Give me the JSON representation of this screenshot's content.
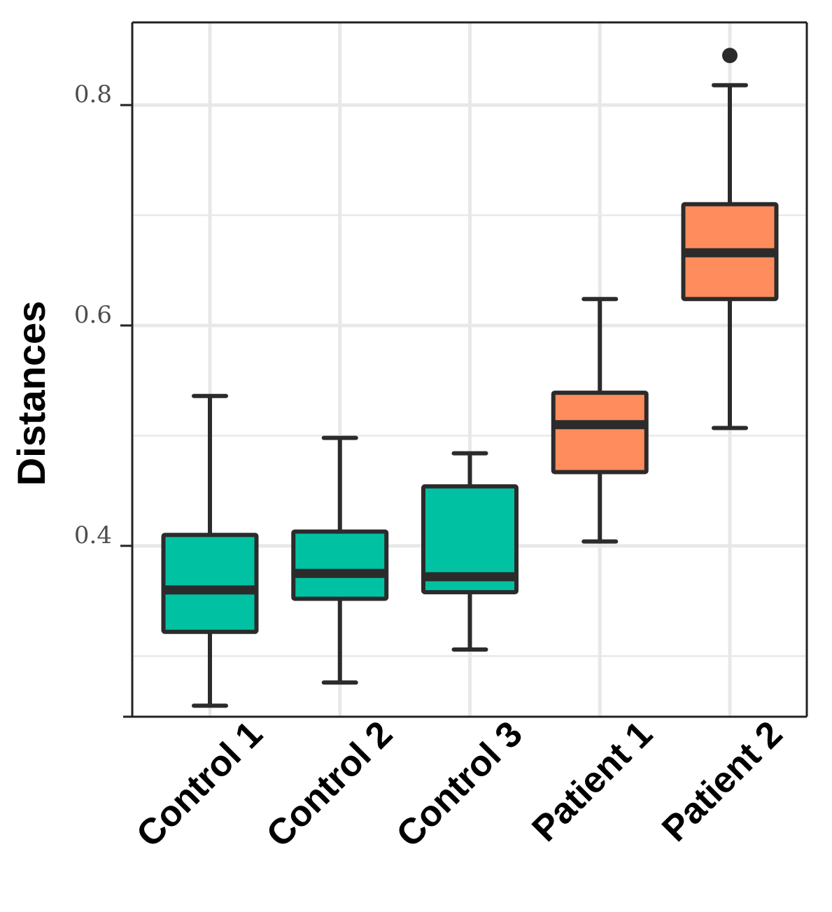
{
  "chart_data": {
    "type": "box",
    "title": "",
    "xlabel": "",
    "ylabel": "Distances",
    "ylim": [
      0.245,
      0.875
    ],
    "yticks": [
      0.4,
      0.6,
      0.8
    ],
    "ytick_labels": [
      "0.4",
      "0.6",
      "0.8"
    ],
    "minor_gridlines": [
      0.3,
      0.5,
      0.7
    ],
    "grid": true,
    "categories": [
      "Control 1",
      "Control 2",
      "Control 3",
      "Patient 1",
      "Patient 2"
    ],
    "boxes": [
      {
        "name": "Control 1",
        "whisker_low": 0.255,
        "q1": 0.322,
        "median": 0.36,
        "q3": 0.41,
        "whisker_high": 0.536,
        "outliers": [],
        "group": "control"
      },
      {
        "name": "Control 2",
        "whisker_low": 0.276,
        "q1": 0.352,
        "median": 0.375,
        "q3": 0.413,
        "whisker_high": 0.498,
        "outliers": [],
        "group": "control"
      },
      {
        "name": "Control 3",
        "whisker_low": 0.306,
        "q1": 0.358,
        "median": 0.372,
        "q3": 0.454,
        "whisker_high": 0.484,
        "outliers": [],
        "group": "control"
      },
      {
        "name": "Patient 1",
        "whisker_low": 0.404,
        "q1": 0.467,
        "median": 0.51,
        "q3": 0.539,
        "whisker_high": 0.624,
        "outliers": [],
        "group": "patient"
      },
      {
        "name": "Patient 2",
        "whisker_low": 0.507,
        "q1": 0.624,
        "median": 0.666,
        "q3": 0.71,
        "whisker_high": 0.818,
        "outliers": [
          0.845
        ],
        "group": "patient"
      }
    ],
    "colors": {
      "control": "#00c2a3",
      "patient": "#ff8c5c",
      "outline": "#2b2b2b",
      "grid": "#e8e8e8",
      "axis": "#222222"
    }
  }
}
